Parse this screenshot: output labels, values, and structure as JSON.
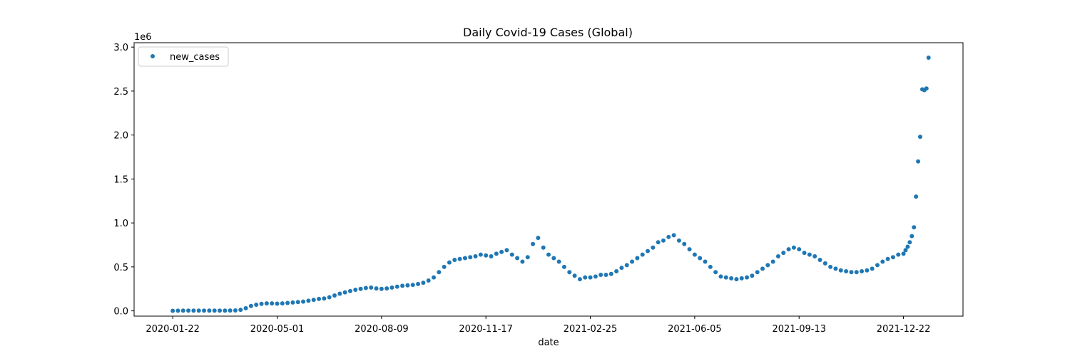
{
  "chart_data": {
    "type": "scatter",
    "title": "Daily Covid-19 Cases (Global)",
    "xlabel": "date",
    "ylabel": "",
    "y_offset_label": "1e6",
    "ylim": [
      -0.06,
      3.05
    ],
    "x_start_date": "2020-01-22",
    "x_tick_labels": [
      "2020-01-22",
      "2020-05-01",
      "2020-08-09",
      "2020-11-17",
      "2021-02-25",
      "2021-06-05",
      "2021-09-13",
      "2021-12-22"
    ],
    "x_tick_days": [
      0,
      100,
      200,
      300,
      400,
      500,
      600,
      700
    ],
    "xlim_days": [
      -37,
      757
    ],
    "y_ticks": [
      0.0,
      0.5,
      1.0,
      1.5,
      2.0,
      2.5,
      3.0
    ],
    "y_tick_labels": [
      "0.0",
      "0.5",
      "1.0",
      "1.5",
      "2.0",
      "2.5",
      "3.0"
    ],
    "legend": {
      "entries": [
        "new_cases"
      ],
      "position": "top-left"
    },
    "color": "#1f77b4",
    "series": [
      {
        "name": "new_cases",
        "unit": "millions",
        "x_days": [
          0,
          5,
          10,
          15,
          20,
          25,
          30,
          35,
          40,
          45,
          50,
          55,
          60,
          65,
          70,
          75,
          80,
          85,
          90,
          95,
          100,
          105,
          110,
          115,
          120,
          125,
          130,
          135,
          140,
          145,
          150,
          155,
          160,
          165,
          170,
          175,
          180,
          185,
          190,
          195,
          200,
          205,
          210,
          215,
          220,
          225,
          230,
          235,
          240,
          245,
          250,
          255,
          260,
          265,
          270,
          275,
          280,
          285,
          290,
          295,
          300,
          305,
          310,
          315,
          320,
          325,
          330,
          335,
          340,
          345,
          350,
          355,
          360,
          365,
          370,
          375,
          380,
          385,
          390,
          395,
          400,
          405,
          410,
          415,
          420,
          425,
          430,
          435,
          440,
          445,
          450,
          455,
          460,
          465,
          470,
          475,
          480,
          485,
          490,
          495,
          500,
          505,
          510,
          515,
          520,
          525,
          530,
          535,
          540,
          545,
          550,
          555,
          560,
          565,
          570,
          575,
          580,
          585,
          590,
          595,
          600,
          605,
          610,
          615,
          620,
          625,
          630,
          635,
          640,
          645,
          650,
          655,
          660,
          665,
          670,
          675,
          680,
          685,
          690,
          695,
          700,
          702,
          704,
          706,
          708,
          710,
          712,
          714,
          716,
          718,
          720,
          722,
          724
        ],
        "y_values": [
          0.001,
          0.002,
          0.003,
          0.003,
          0.003,
          0.003,
          0.003,
          0.003,
          0.003,
          0.003,
          0.003,
          0.004,
          0.005,
          0.012,
          0.03,
          0.055,
          0.07,
          0.08,
          0.085,
          0.085,
          0.082,
          0.085,
          0.09,
          0.095,
          0.1,
          0.105,
          0.115,
          0.125,
          0.135,
          0.14,
          0.155,
          0.175,
          0.195,
          0.21,
          0.225,
          0.24,
          0.25,
          0.26,
          0.265,
          0.255,
          0.25,
          0.255,
          0.265,
          0.275,
          0.285,
          0.29,
          0.295,
          0.305,
          0.32,
          0.345,
          0.38,
          0.44,
          0.5,
          0.55,
          0.58,
          0.59,
          0.6,
          0.61,
          0.62,
          0.64,
          0.63,
          0.62,
          0.65,
          0.67,
          0.69,
          0.64,
          0.6,
          0.56,
          0.61,
          0.76,
          0.83,
          0.72,
          0.64,
          0.6,
          0.56,
          0.5,
          0.44,
          0.4,
          0.36,
          0.38,
          0.38,
          0.39,
          0.41,
          0.41,
          0.42,
          0.45,
          0.49,
          0.52,
          0.56,
          0.6,
          0.64,
          0.68,
          0.72,
          0.78,
          0.8,
          0.84,
          0.86,
          0.8,
          0.76,
          0.7,
          0.64,
          0.6,
          0.56,
          0.5,
          0.44,
          0.39,
          0.38,
          0.37,
          0.36,
          0.37,
          0.38,
          0.4,
          0.44,
          0.48,
          0.52,
          0.56,
          0.62,
          0.66,
          0.7,
          0.72,
          0.7,
          0.66,
          0.64,
          0.62,
          0.58,
          0.54,
          0.5,
          0.48,
          0.46,
          0.45,
          0.44,
          0.44,
          0.45,
          0.46,
          0.48,
          0.52,
          0.56,
          0.59,
          0.61,
          0.64,
          0.65,
          0.69,
          0.73,
          0.78,
          0.85,
          0.95,
          1.3,
          1.7,
          1.98,
          2.52,
          2.51,
          2.53,
          2.88
        ]
      }
    ]
  }
}
